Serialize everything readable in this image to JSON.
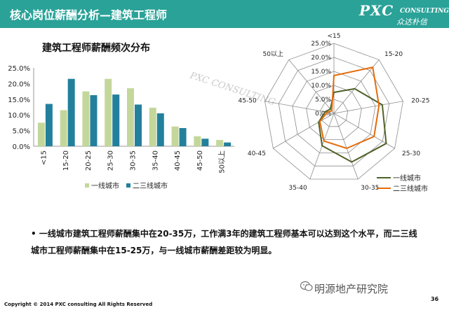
{
  "header": {
    "title": "核心岗位薪酬分析—建筑工程师",
    "logo_main": "PXC",
    "logo_sub": "CONSULTING",
    "logo_cn": "众达朴信"
  },
  "colors": {
    "header_bg": "#2aa298",
    "series1": "#c4d79b",
    "series2": "#23809c",
    "radar1": "#4f6228",
    "radar2": "#e46c0a"
  },
  "chart_data": [
    {
      "type": "bar",
      "title": "建筑工程师薪酬频次分布",
      "categories": [
        "<15",
        "15-20",
        "20-25",
        "25-30",
        "30-35",
        "35-40",
        "40-45",
        "45-50",
        "50以上"
      ],
      "series": [
        {
          "name": "一线城市",
          "values": [
            7.5,
            11.5,
            17.5,
            21.5,
            18.5,
            12.3,
            6.3,
            3.2,
            2.0
          ]
        },
        {
          "name": "二三线城市",
          "values": [
            13.5,
            21.5,
            16.3,
            16.5,
            13.3,
            10.5,
            5.8,
            2.4,
            1.2
          ]
        }
      ],
      "yticks": [
        "0.0%",
        "5.0%",
        "10.0%",
        "15.0%",
        "20.0%",
        "25.0%"
      ],
      "ylim": [
        0,
        25
      ]
    },
    {
      "type": "radar",
      "categories": [
        "<15",
        "15-20",
        "20-25",
        "25-30",
        "30-35",
        "35-40",
        "40-45",
        "45-50",
        "50以上"
      ],
      "series": [
        {
          "name": "一线城市",
          "values": [
            7.5,
            11.5,
            17.5,
            21.5,
            18.5,
            12.3,
            6.3,
            3.2,
            2.0
          ]
        },
        {
          "name": "二三线城市",
          "values": [
            13.5,
            21.5,
            16.3,
            16.5,
            13.3,
            10.5,
            5.8,
            2.4,
            1.2
          ]
        }
      ],
      "rticks": [
        "0.0%",
        "5.0%",
        "10.0%",
        "15.0%",
        "20.0%",
        "25.0%"
      ],
      "rlim": [
        0,
        25
      ]
    }
  ],
  "bullet_text": "一线城市建筑工程师薪酬集中在20-35万，工作满3年的建筑工程师基本可以达到这个水平，而二三线城市工程师薪酬集中在15-25万，与一线城市薪酬差距较为明显。",
  "watermark_text": "PXC CONSULTING",
  "wechat_watermark": "明源地产研究院",
  "footer": {
    "copyright": "Copyright © 2014  PXC consulting All Rights Reserved",
    "page": "36"
  }
}
